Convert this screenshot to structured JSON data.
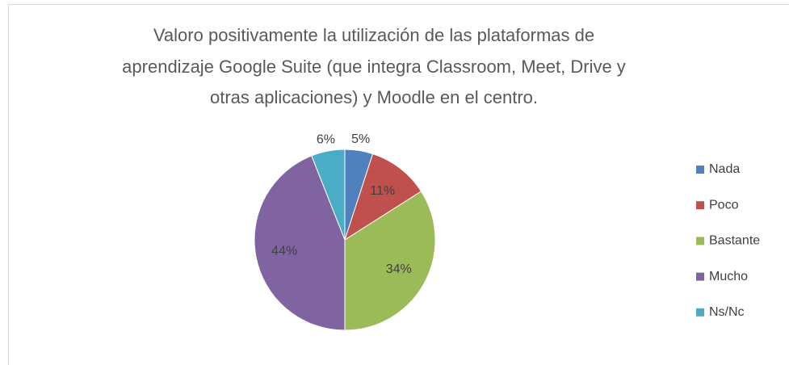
{
  "chart_data": {
    "type": "pie",
    "title": [
      "Valoro positivamente la utilización de las plataformas de",
      "aprendizaje Google Suite (que integra Classroom, Meet, Drive y",
      "otras aplicaciones) y Moodle en el centro."
    ],
    "categories": [
      "Nada",
      "Poco",
      "Bastante",
      "Mucho",
      "Ns/Nc"
    ],
    "values": [
      5,
      11,
      34,
      44,
      6
    ],
    "value_labels": [
      "5%",
      "11%",
      "34%",
      "44%",
      "6%"
    ],
    "colors": [
      "#4f81bd",
      "#c0504d",
      "#9bbb59",
      "#8064a2",
      "#4bacc6"
    ],
    "legend": "right"
  }
}
